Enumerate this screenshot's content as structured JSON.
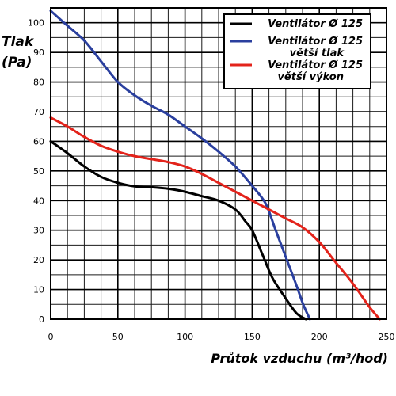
{
  "chart_data": {
    "type": "line",
    "xlabel": "Průtok vzduchu (m³/hod)",
    "ylabel_line1": "Tlak",
    "ylabel_line2": "(Pa)",
    "xlim": [
      0,
      250
    ],
    "ylim": [
      0,
      105
    ],
    "x_ticks": [
      0,
      50,
      100,
      150,
      200,
      250
    ],
    "y_ticks": [
      0,
      10,
      20,
      30,
      40,
      50,
      60,
      70,
      80,
      90,
      100
    ],
    "x_minor_step": 12.5,
    "y_minor_step": 5,
    "grid": true,
    "legend_position": "top-right",
    "series": [
      {
        "name": "Ventilátor Ø 125",
        "legend_lines": [
          "Ventilátor Ø 125"
        ],
        "color": "#000000",
        "points": [
          [
            0,
            60
          ],
          [
            12.5,
            56
          ],
          [
            25,
            51.5
          ],
          [
            37.5,
            48
          ],
          [
            50,
            46
          ],
          [
            62.5,
            44.8
          ],
          [
            75,
            44.5
          ],
          [
            87.5,
            44
          ],
          [
            100,
            43
          ],
          [
            112.5,
            41.5
          ],
          [
            125,
            40
          ],
          [
            137.5,
            37
          ],
          [
            145,
            33
          ],
          [
            150,
            30
          ],
          [
            157.5,
            22
          ],
          [
            165,
            14
          ],
          [
            175,
            7
          ],
          [
            183,
            2
          ],
          [
            190,
            0
          ]
        ]
      },
      {
        "name": "Ventilátor Ø 125 větší tlak",
        "legend_lines": [
          "Ventilátor Ø 125",
          "větší tlak"
        ],
        "color": "#2a3f9e",
        "points": [
          [
            0,
            104
          ],
          [
            12.5,
            99
          ],
          [
            25,
            94
          ],
          [
            37.5,
            87
          ],
          [
            50,
            80
          ],
          [
            62.5,
            75.5
          ],
          [
            75,
            72
          ],
          [
            87.5,
            69
          ],
          [
            100,
            65
          ],
          [
            112.5,
            61
          ],
          [
            125,
            56.5
          ],
          [
            137.5,
            51.5
          ],
          [
            150,
            45
          ],
          [
            160,
            39
          ],
          [
            167.5,
            30
          ],
          [
            175,
            21
          ],
          [
            182.5,
            12
          ],
          [
            188,
            5
          ],
          [
            193,
            0
          ]
        ]
      },
      {
        "name": "Ventilátor Ø 125 větší výkon",
        "legend_lines": [
          "Ventilátor Ø 125",
          "větší výkon"
        ],
        "color": "#e3231b",
        "points": [
          [
            0,
            68
          ],
          [
            12.5,
            65
          ],
          [
            25,
            61.5
          ],
          [
            37.5,
            58.5
          ],
          [
            50,
            56.5
          ],
          [
            62.5,
            55
          ],
          [
            75,
            54
          ],
          [
            87.5,
            53
          ],
          [
            100,
            51.5
          ],
          [
            112.5,
            49
          ],
          [
            125,
            46
          ],
          [
            137.5,
            43
          ],
          [
            150,
            40
          ],
          [
            162.5,
            37
          ],
          [
            175,
            34
          ],
          [
            187.5,
            31
          ],
          [
            200,
            26
          ],
          [
            212.5,
            19
          ],
          [
            225,
            12
          ],
          [
            237.5,
            4
          ],
          [
            245,
            0
          ]
        ]
      }
    ]
  }
}
